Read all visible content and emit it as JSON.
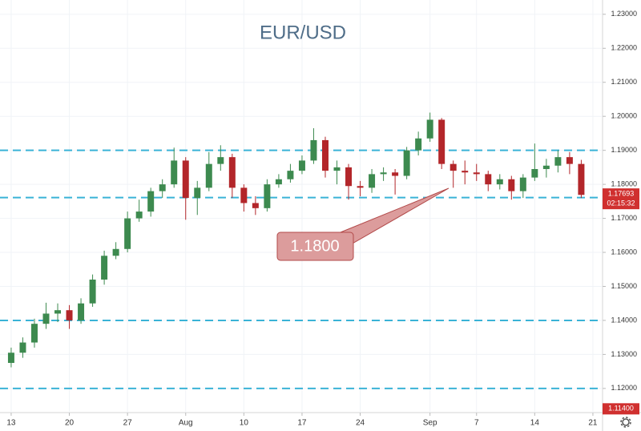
{
  "chart_data": {
    "type": "candlestick",
    "title": "EUR/USD",
    "open": [
      1.1275,
      1.1305,
      1.1335,
      1.139,
      1.142,
      1.143,
      1.14,
      1.145,
      1.152,
      1.159,
      1.161,
      1.17,
      1.172,
      1.178,
      1.18,
      1.187,
      1.176,
      1.179,
      1.186,
      1.188,
      1.179,
      1.1745,
      1.173,
      1.18,
      1.1815,
      1.184,
      1.187,
      1.193,
      1.184,
      1.185,
      1.1795,
      1.179,
      1.183,
      1.1835,
      1.1825,
      1.19,
      1.1935,
      1.199,
      1.186,
      1.184,
      1.1835,
      1.183,
      1.18,
      1.1815,
      1.178,
      1.182,
      1.1845,
      1.1855,
      1.188,
      1.186
    ],
    "high": [
      1.132,
      1.135,
      1.1405,
      1.1452,
      1.145,
      1.1445,
      1.1465,
      1.1535,
      1.1605,
      1.163,
      1.172,
      1.1755,
      1.179,
      1.1815,
      1.1908,
      1.188,
      1.181,
      1.1895,
      1.1915,
      1.189,
      1.18,
      1.1765,
      1.1815,
      1.183,
      1.186,
      1.1885,
      1.1965,
      1.194,
      1.187,
      1.186,
      1.181,
      1.1845,
      1.185,
      1.1845,
      1.191,
      1.1955,
      1.2011,
      1.1995,
      1.187,
      1.187,
      1.186,
      1.184,
      1.183,
      1.1825,
      1.183,
      1.192,
      1.1875,
      1.19,
      1.1895,
      1.1872
    ],
    "low": [
      1.1262,
      1.129,
      1.132,
      1.1375,
      1.1395,
      1.1375,
      1.139,
      1.144,
      1.1505,
      1.158,
      1.16,
      1.169,
      1.1705,
      1.176,
      1.179,
      1.1696,
      1.171,
      1.178,
      1.184,
      1.176,
      1.172,
      1.171,
      1.172,
      1.179,
      1.1805,
      1.183,
      1.186,
      1.182,
      1.18,
      1.1755,
      1.1765,
      1.1775,
      1.181,
      1.177,
      1.1815,
      1.1885,
      1.1925,
      1.1845,
      1.179,
      1.18,
      1.181,
      1.178,
      1.1785,
      1.1755,
      1.176,
      1.181,
      1.182,
      1.1835,
      1.183,
      1.176
    ],
    "close": [
      1.1305,
      1.1335,
      1.139,
      1.142,
      1.143,
      1.14,
      1.145,
      1.152,
      1.159,
      1.161,
      1.17,
      1.172,
      1.178,
      1.18,
      1.187,
      1.176,
      1.179,
      1.186,
      1.188,
      1.179,
      1.1745,
      1.173,
      1.18,
      1.1815,
      1.184,
      1.187,
      1.193,
      1.184,
      1.185,
      1.1795,
      1.179,
      1.183,
      1.1835,
      1.1825,
      1.19,
      1.1935,
      1.199,
      1.186,
      1.184,
      1.1835,
      1.183,
      1.18,
      1.1815,
      1.178,
      1.182,
      1.1845,
      1.1855,
      1.188,
      1.186,
      1.1769
    ],
    "up_color": "#3d8a4f",
    "down_color": "#b3262a",
    "xlim": [
      -0.96,
      50.83
    ],
    "xticks": [
      {
        "value": 0,
        "label": "13"
      },
      {
        "value": 5,
        "label": "20"
      },
      {
        "value": 10,
        "label": "27"
      },
      {
        "value": 15,
        "label": "Aug"
      },
      {
        "value": 20,
        "label": "10"
      },
      {
        "value": 25,
        "label": "17"
      },
      {
        "value": 30,
        "label": "24"
      },
      {
        "value": 36,
        "label": "Sep"
      },
      {
        "value": 40,
        "label": "7"
      },
      {
        "value": 45,
        "label": "14"
      },
      {
        "value": 50,
        "label": "21"
      }
    ],
    "ylim": [
      1.1129,
      1.2342
    ],
    "yticks": [
      {
        "value": 1.12,
        "label": "1.12000"
      },
      {
        "value": 1.13,
        "label": "1.13000"
      },
      {
        "value": 1.14,
        "label": "1.14000"
      },
      {
        "value": 1.15,
        "label": "1.15000"
      },
      {
        "value": 1.16,
        "label": "1.16000"
      },
      {
        "value": 1.17,
        "label": "1.17000"
      },
      {
        "value": 1.18,
        "label": "1.18000"
      },
      {
        "value": 1.19,
        "label": "1.19000"
      },
      {
        "value": 1.2,
        "label": "1.20000"
      },
      {
        "value": 1.21,
        "label": "1.21000"
      },
      {
        "value": 1.22,
        "label": "1.22000"
      },
      {
        "value": 1.23,
        "label": "1.23000"
      }
    ],
    "grid": true,
    "levels": [
      1.19,
      1.1761,
      1.14,
      1.12
    ],
    "level_color": "#3ab3d6",
    "annotation": "1.1800",
    "last_price_label": "1.17693",
    "countdown": "02:15:32",
    "crosshair_label": "1.11400"
  }
}
